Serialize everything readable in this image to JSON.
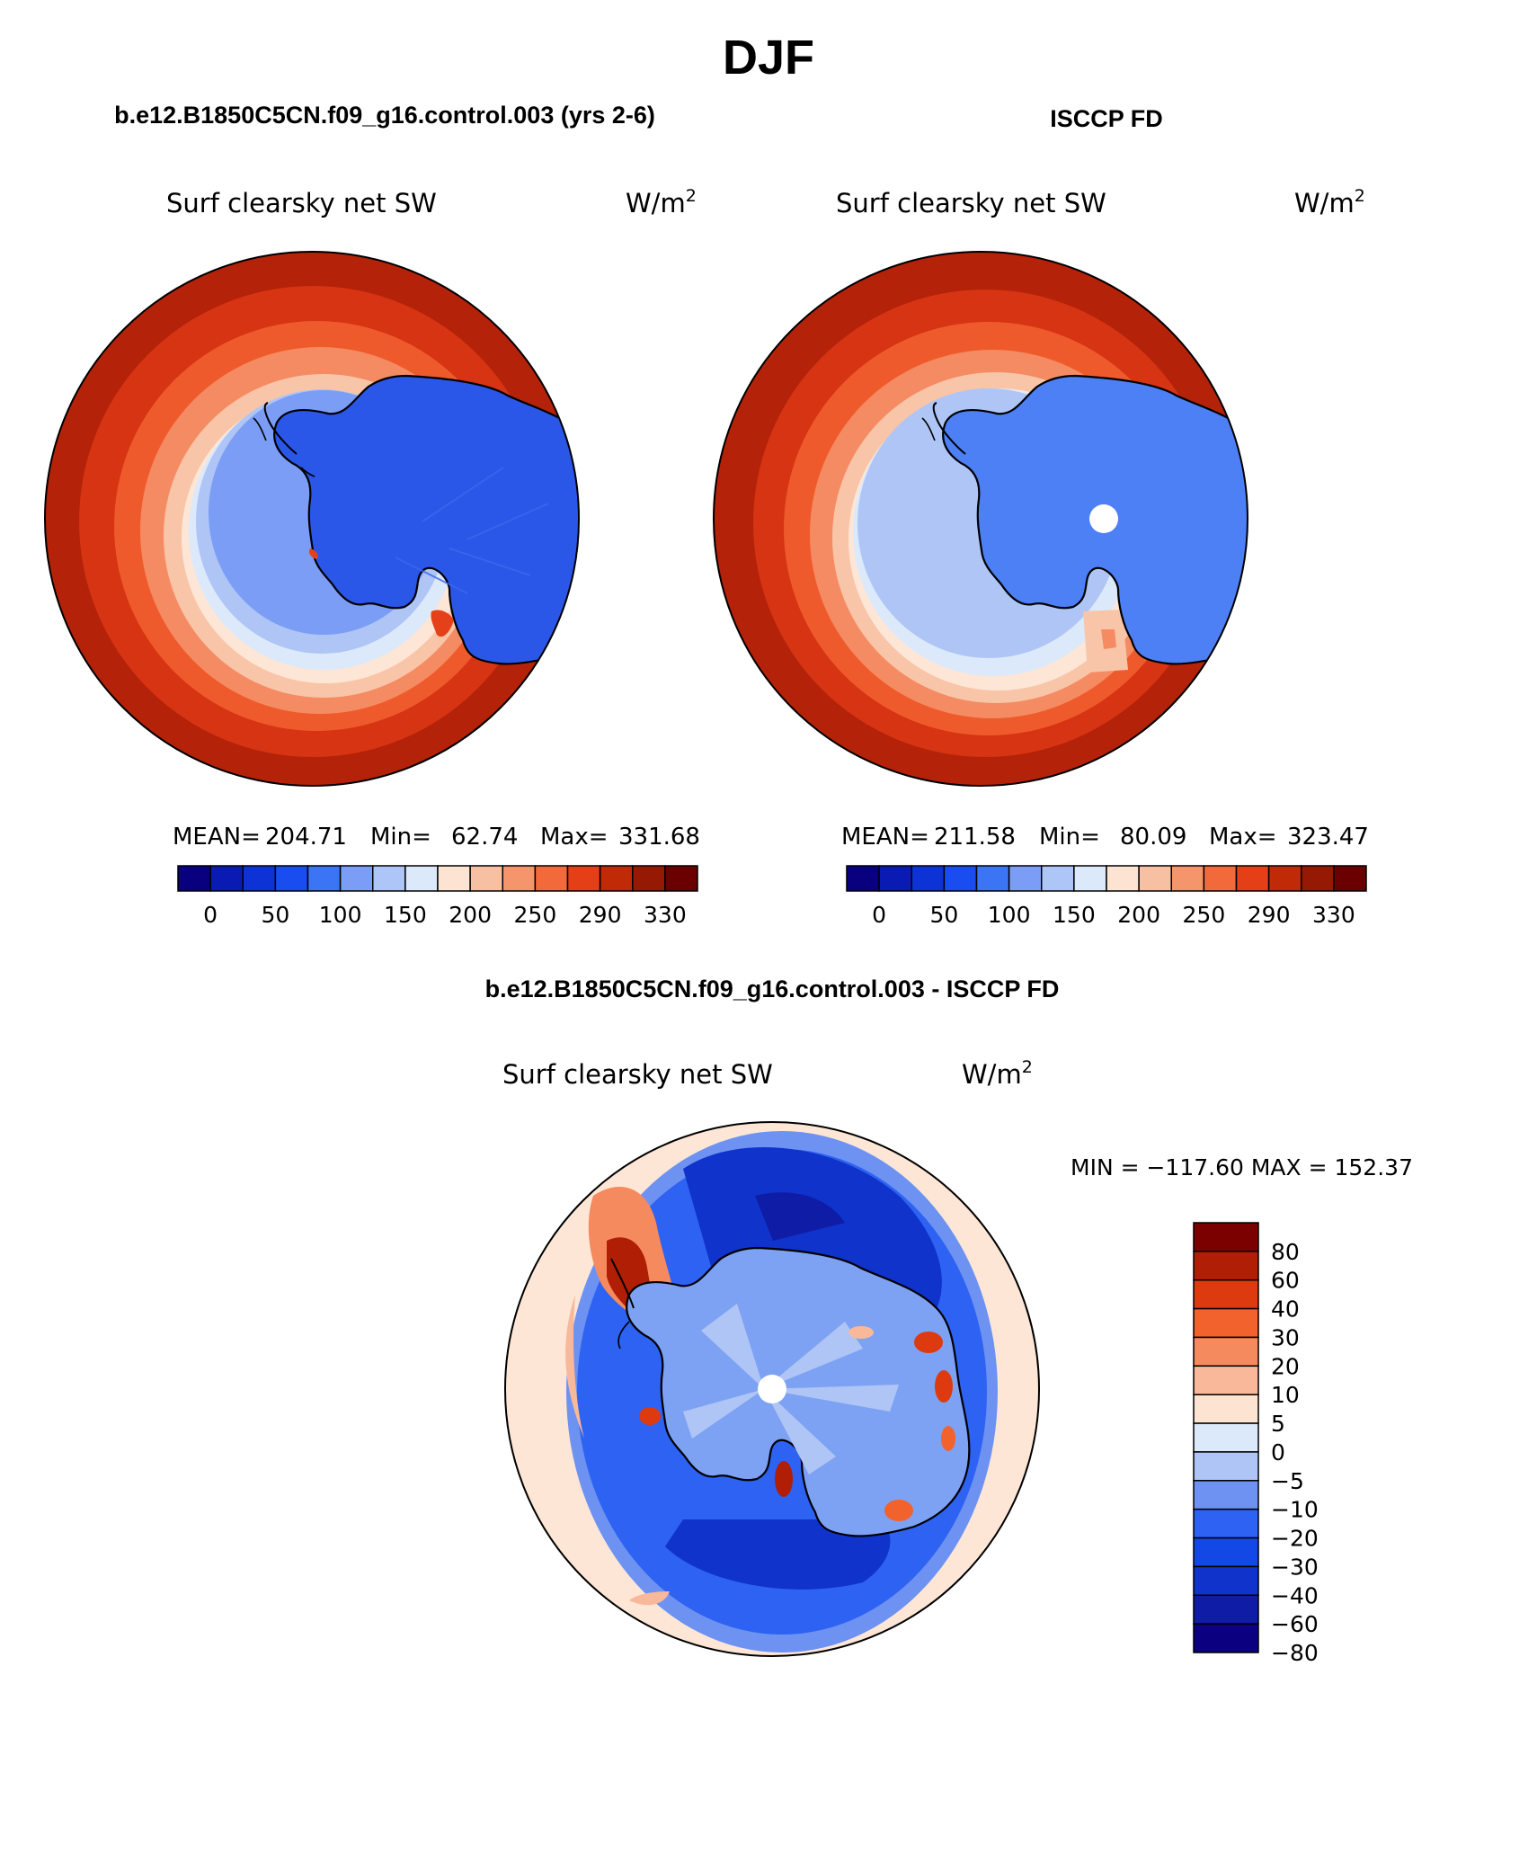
{
  "page": {
    "title": "DJF",
    "panels": [
      {
        "heading": "b.e12.B1850C5CN.f09_g16.control.003 (yrs 2-6)",
        "variable": "Surf clearsky net SW",
        "units_base": "W/m",
        "units_exp": "2",
        "stats": {
          "mean_label": "MEAN=",
          "mean": "204.71",
          "min_label": "Min=",
          "min": "62.74",
          "max_label": "Max=",
          "max": "331.68"
        },
        "has_pole_hole": false,
        "ice_scheme": "model"
      },
      {
        "heading": "ISCCP FD",
        "variable": "Surf clearsky net SW",
        "units_base": "W/m",
        "units_exp": "2",
        "stats": {
          "mean_label": "MEAN=",
          "mean": "211.58",
          "min_label": "Min=",
          "min": "80.09",
          "max_label": "Max=",
          "max": "323.47"
        },
        "has_pole_hole": true,
        "ice_scheme": "obs"
      }
    ],
    "diff": {
      "heading": "b.e12.B1850C5CN.f09_g16.control.003 - ISCCP FD",
      "variable": "Surf clearsky net SW",
      "units_base": "W/m",
      "units_exp": "2",
      "minmax": "MIN = −117.60 MAX = 152.37",
      "has_pole_hole": true
    },
    "abs_colorbar": {
      "colors": [
        "#08007e",
        "#0a1bb4",
        "#0d33d6",
        "#1a4df0",
        "#3b74f5",
        "#7b9df5",
        "#adc6f7",
        "#dce9fa",
        "#fde3d1",
        "#f8c0a2",
        "#f5956c",
        "#f26a3c",
        "#e43f17",
        "#c12a06",
        "#961903",
        "#6b0000"
      ],
      "labels": [
        "0",
        "50",
        "100",
        "150",
        "200",
        "250",
        "290",
        "330"
      ]
    },
    "diff_colorbar": {
      "colors": [
        "#0a0080",
        "#0e1ca6",
        "#0f33cb",
        "#1448e6",
        "#2d62f2",
        "#6d92f2",
        "#aec5f5",
        "#dce9fb",
        "#fde3d1",
        "#f9b89a",
        "#f68a5f",
        "#f2622d",
        "#dd3a10",
        "#b01f05",
        "#7b0000"
      ],
      "labels": [
        "80",
        "60",
        "40",
        "30",
        "20",
        "10",
        "5",
        "0",
        "−5",
        "−10",
        "−20",
        "−30",
        "−40",
        "−60",
        "−80"
      ]
    }
  }
}
